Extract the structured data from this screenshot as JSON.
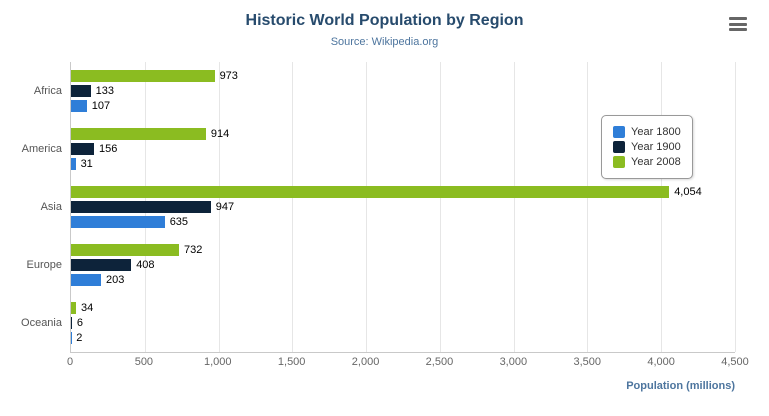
{
  "header": {
    "title": "Historic World Population by Region",
    "subtitle": "Source: Wikipedia.org"
  },
  "chart_data": {
    "type": "bar",
    "orientation": "horizontal",
    "title": "Historic World Population by Region",
    "subtitle": "Source: Wikipedia.org",
    "categories": [
      "Africa",
      "America",
      "Asia",
      "Europe",
      "Oceania"
    ],
    "series": [
      {
        "name": "Year 1800",
        "color": "#2f7ed8",
        "values": [
          107,
          31,
          635,
          203,
          2
        ]
      },
      {
        "name": "Year 1900",
        "color": "#0d233a",
        "values": [
          133,
          156,
          947,
          408,
          6
        ]
      },
      {
        "name": "Year 2008",
        "color": "#8bbc21",
        "values": [
          973,
          914,
          4054,
          732,
          34
        ]
      }
    ],
    "xlabel": "Population (millions)",
    "ylabel": "",
    "xlim": [
      0,
      4500
    ],
    "x_ticks": [
      0,
      500,
      1000,
      1500,
      2000,
      2500,
      3000,
      3500,
      4000,
      4500
    ],
    "grid": true,
    "legend_position": "right"
  }
}
